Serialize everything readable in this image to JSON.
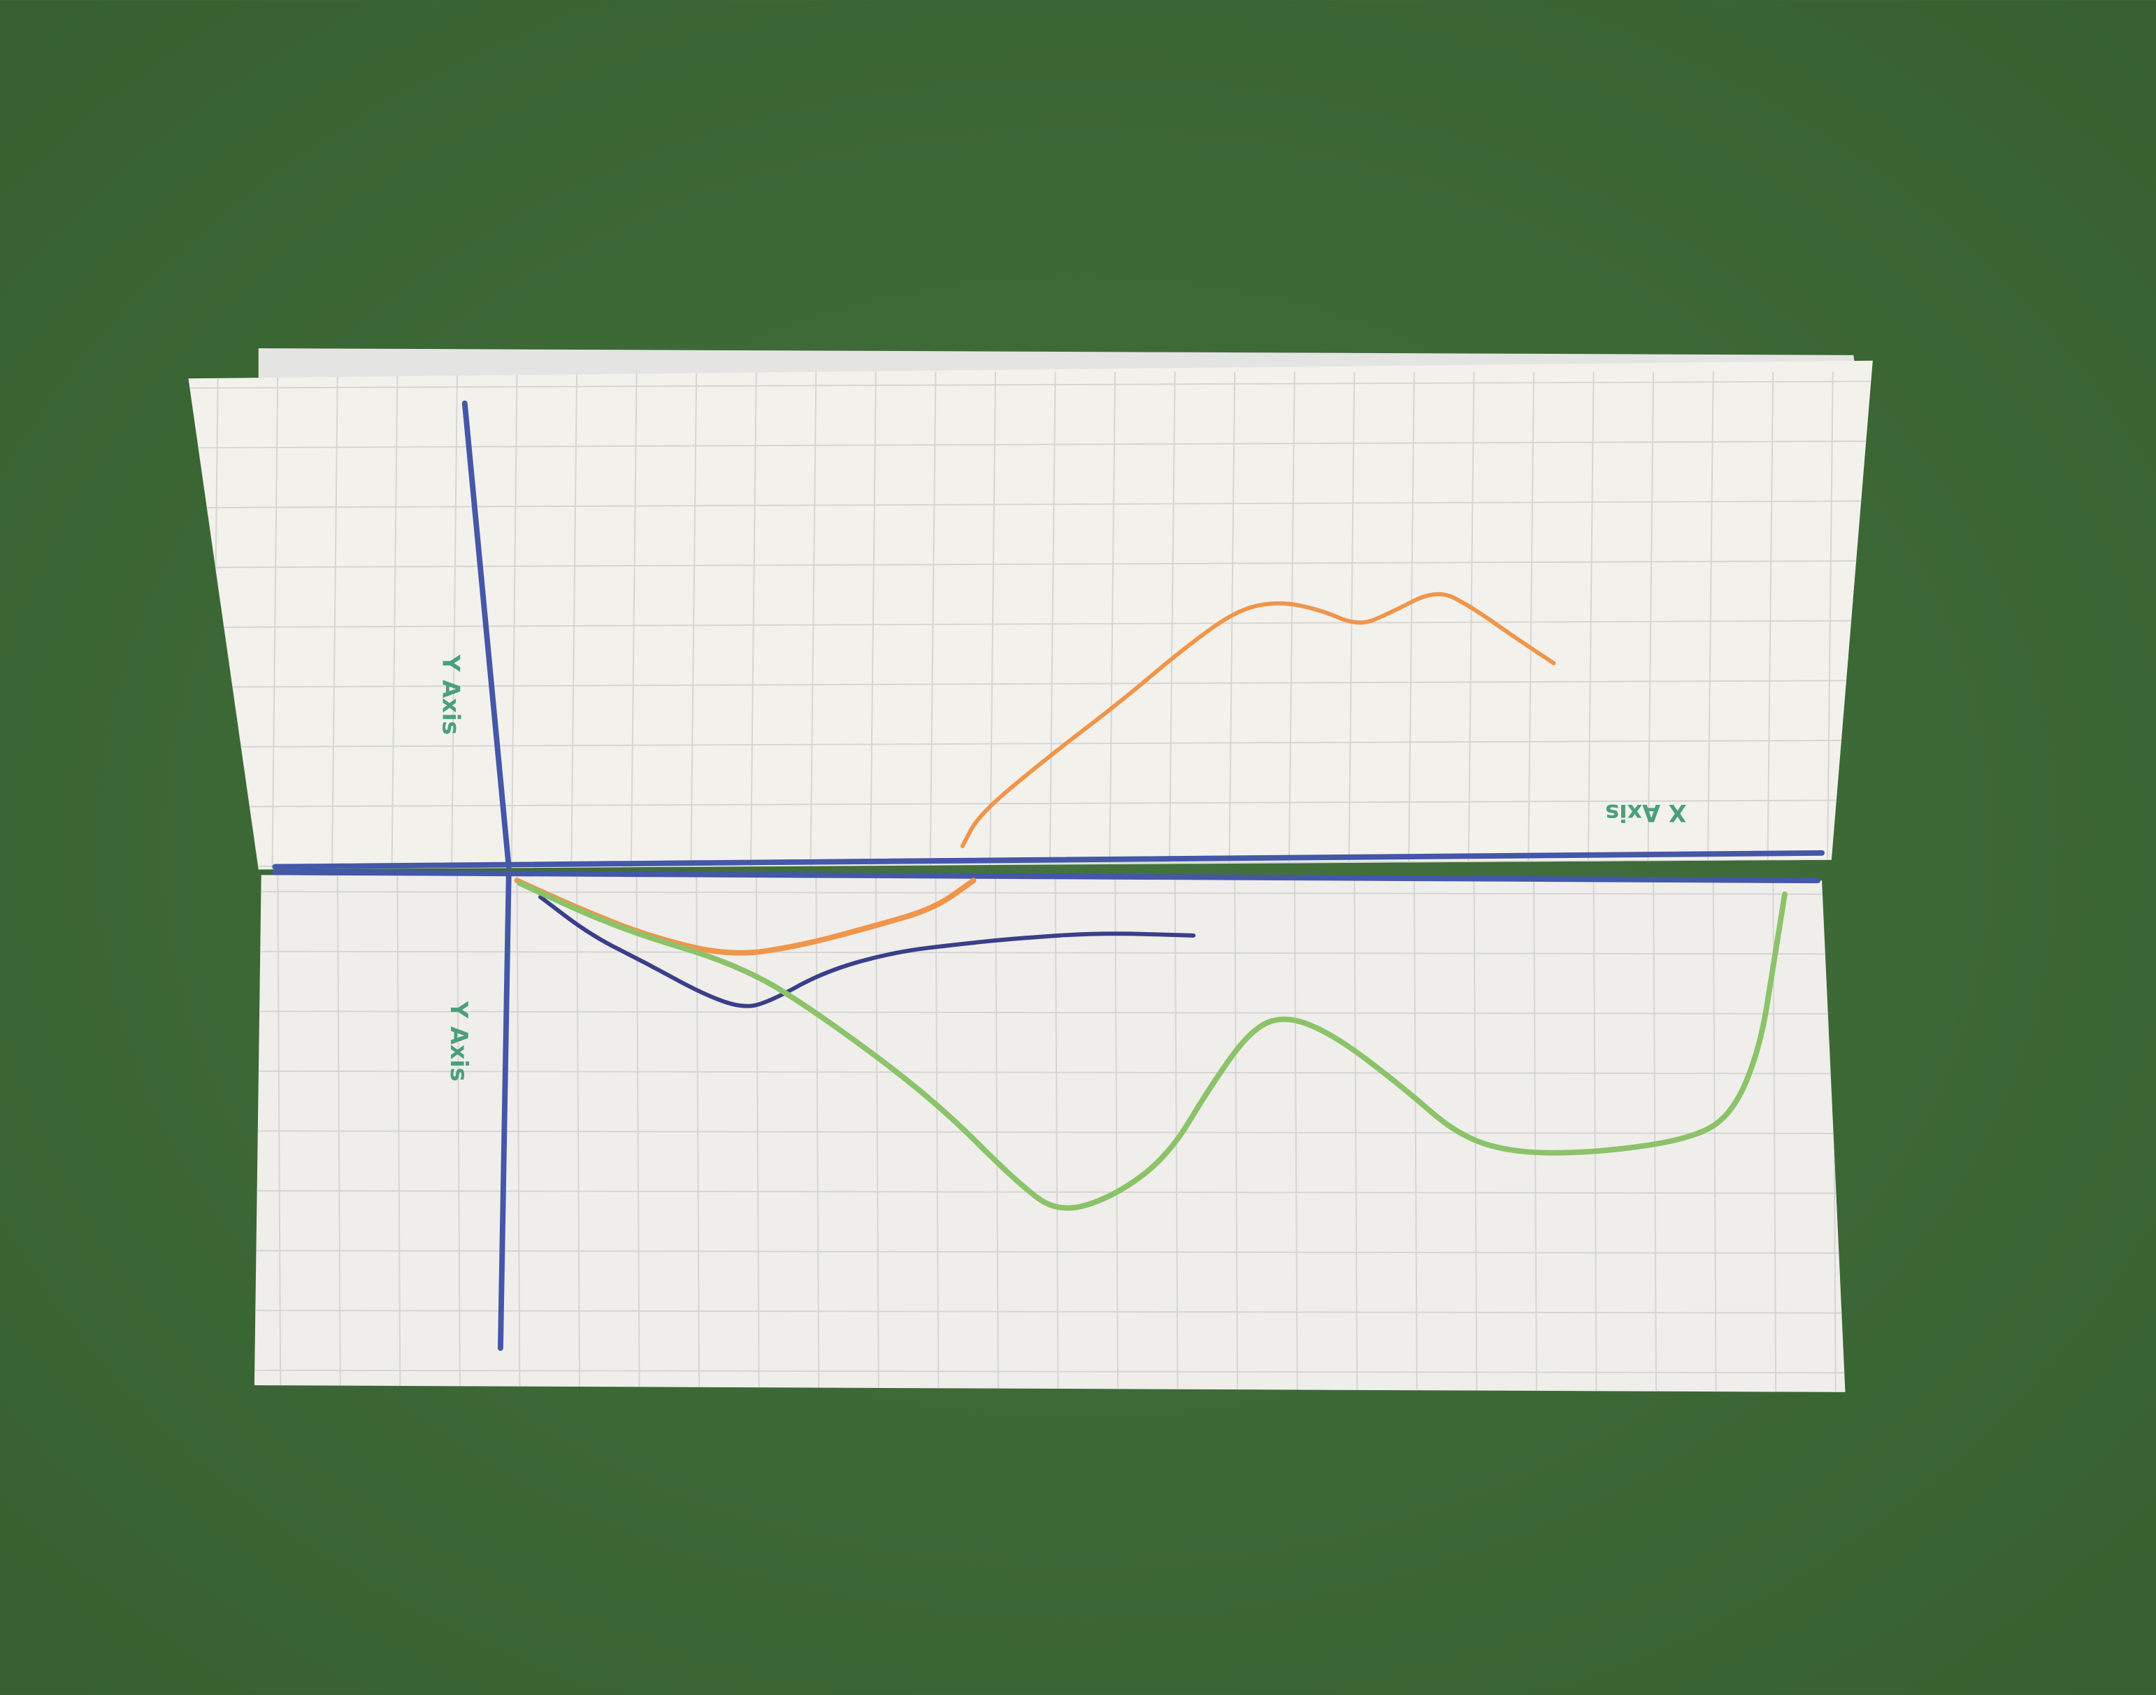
{
  "photo": {
    "top_half": {
      "y_axis_label": "Y Axis",
      "x_axis_label": "X Axis"
    },
    "bottom_half": {
      "y_axis_label": "Y Axis"
    }
  },
  "colors": {
    "background": "#3e6a3b",
    "paper": "#f3f1ec",
    "grid": "#d4d6d4",
    "axes": "#4457a8",
    "label": "#4aa07a",
    "orange_line": "#f0954a",
    "navy_line": "#3a3f8a",
    "green_line": "#8cc36a"
  }
}
